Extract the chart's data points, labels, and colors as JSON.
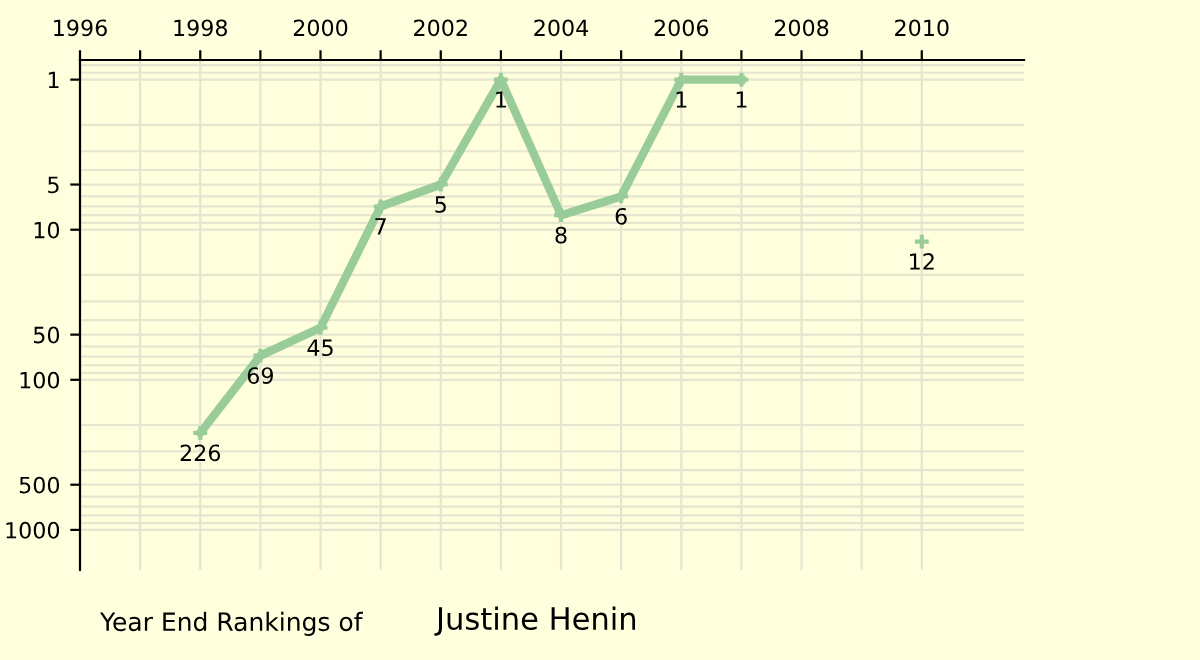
{
  "chart_data": {
    "type": "line",
    "title": "Year End Rankings of",
    "subtitle": "Justine Henin",
    "x": [
      1998,
      1999,
      2000,
      2001,
      2002,
      2003,
      2004,
      2005,
      2006,
      2007,
      2008,
      2009,
      2010
    ],
    "series": [
      {
        "color": "#99cc99",
        "values": [
          226,
          69,
          45,
          7,
          5,
          1,
          8,
          6,
          1,
          1,
          null,
          null,
          12
        ]
      }
    ],
    "xlim": [
      1996,
      2011.7
    ],
    "xticks": [
      1996,
      {
        "value": 1997,
        "label": null
      },
      1998,
      {
        "value": 1999,
        "label": null
      },
      2000,
      {
        "value": 2001,
        "label": null
      },
      2002,
      {
        "value": 2003,
        "label": null
      },
      2004,
      {
        "value": 2005,
        "label": null
      },
      2006,
      {
        "value": 2007,
        "label": null
      },
      2008,
      {
        "value": 2009,
        "label": null
      },
      2010
    ],
    "ylim": [
      1850,
      0.74
    ],
    "yticks": [
      1,
      5,
      10,
      50,
      100,
      500,
      1000
    ],
    "log": "y",
    "grid": true,
    "marker": "cross",
    "line_style": "solid",
    "data_labels": true
  }
}
